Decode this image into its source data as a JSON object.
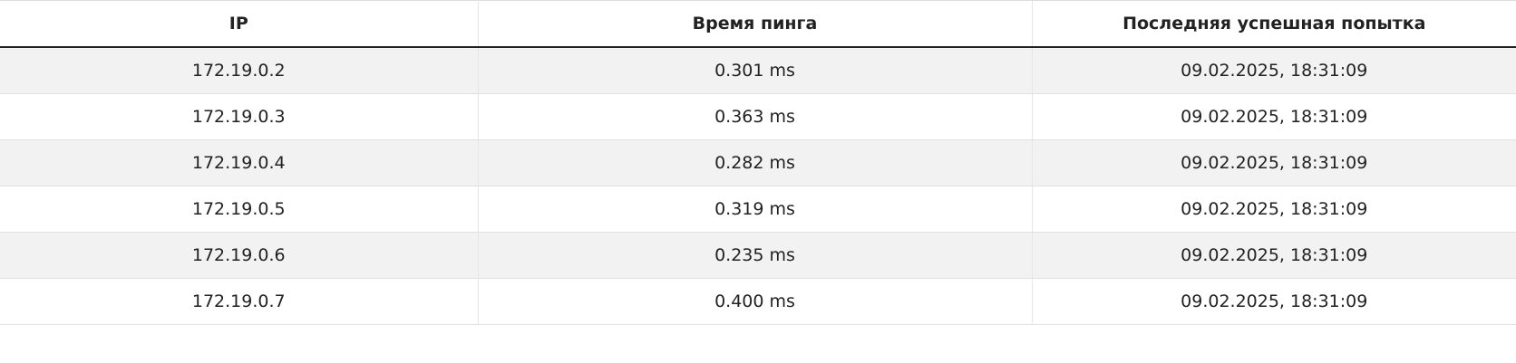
{
  "table": {
    "columns": [
      "IP",
      "Время пинга",
      "Последняя успешная попытка"
    ],
    "rows": [
      {
        "ip": "172.19.0.2",
        "ping": "0.301 ms",
        "last_success": "09.02.2025, 18:31:09"
      },
      {
        "ip": "172.19.0.3",
        "ping": "0.363 ms",
        "last_success": "09.02.2025, 18:31:09"
      },
      {
        "ip": "172.19.0.4",
        "ping": "0.282 ms",
        "last_success": "09.02.2025, 18:31:09"
      },
      {
        "ip": "172.19.0.5",
        "ping": "0.319 ms",
        "last_success": "09.02.2025, 18:31:09"
      },
      {
        "ip": "172.19.0.6",
        "ping": "0.235 ms",
        "last_success": "09.02.2025, 18:31:09"
      },
      {
        "ip": "172.19.0.7",
        "ping": "0.400 ms",
        "last_success": "09.02.2025, 18:31:09"
      }
    ]
  },
  "colors": {
    "row_stripe": "#f2f2f2",
    "header_rule": "#222222",
    "text": "#222222"
  }
}
